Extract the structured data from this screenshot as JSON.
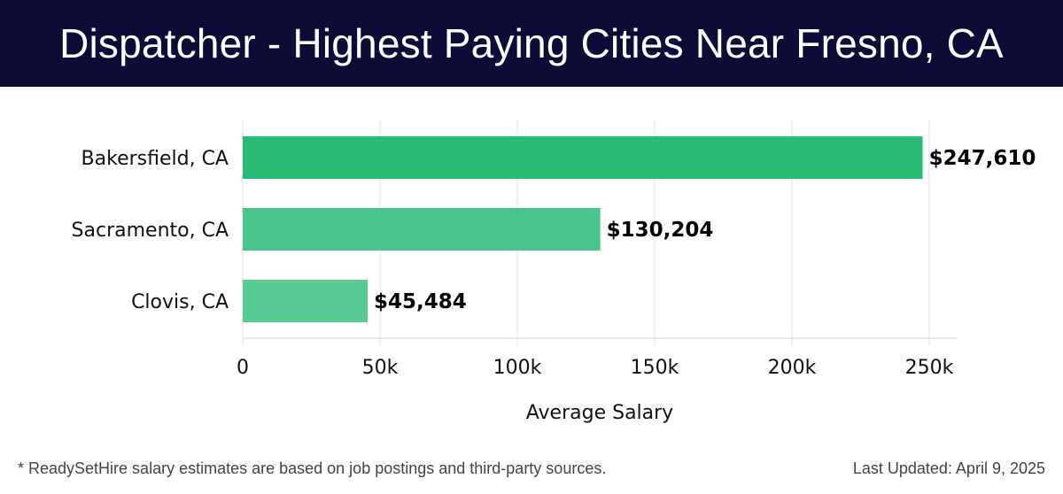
{
  "header": {
    "title": "Dispatcher - Highest Paying Cities Near Fresno, CA"
  },
  "chart_data": {
    "type": "bar",
    "orientation": "horizontal",
    "categories": [
      "Bakersfield, CA",
      "Sacramento, CA",
      "Clovis, CA"
    ],
    "values": [
      247610,
      130204,
      45484
    ],
    "value_labels": [
      "$247,610",
      "$130,204",
      "$45,484"
    ],
    "xlabel": "Average Salary",
    "ylabel": "",
    "xlim": [
      0,
      260000
    ],
    "x_ticks": [
      0,
      50000,
      100000,
      150000,
      200000,
      250000
    ],
    "x_tick_labels": [
      "0",
      "50k",
      "100k",
      "150k",
      "200k",
      "250k"
    ],
    "grid": true,
    "bar_colors": [
      "#2abb75",
      "#47c58b",
      "#58cb95"
    ]
  },
  "footer": {
    "note": "* ReadySetHire salary estimates are based on job postings and third-party sources.",
    "updated": "Last Updated: April 9, 2025"
  }
}
